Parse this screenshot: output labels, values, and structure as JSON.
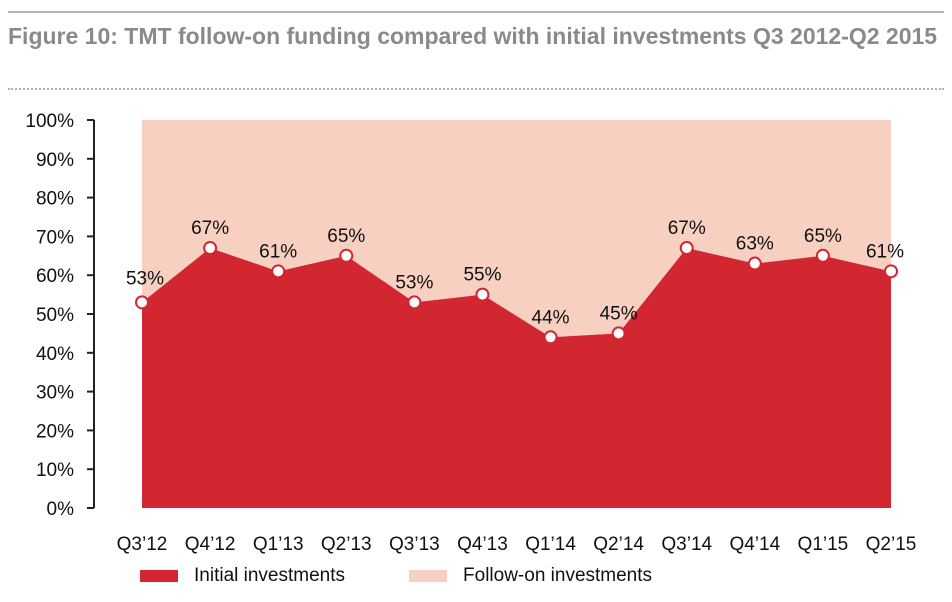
{
  "title": "Figure 10: TMT follow-on funding compared with initial investments Q3 2012-Q2 2015",
  "colors": {
    "initial": "#d22630",
    "followon": "#f7d0c2",
    "title": "#8a8a8a",
    "rule": "#b3b3b3"
  },
  "chart_data": {
    "type": "area",
    "title": "Figure 10: TMT follow-on funding compared with initial investments Q3 2012-Q2 2015",
    "categories": [
      "Q3’12",
      "Q4’12",
      "Q1’13",
      "Q2’13",
      "Q3’13",
      "Q4’13",
      "Q1’14",
      "Q2’14",
      "Q3’14",
      "Q4’14",
      "Q1’15",
      "Q2’15"
    ],
    "series": [
      {
        "name": "Initial investments",
        "values": [
          53,
          67,
          61,
          65,
          53,
          55,
          44,
          45,
          67,
          63,
          65,
          61
        ],
        "color": "#d22630"
      },
      {
        "name": "Follow-on investments",
        "values": [
          47,
          33,
          39,
          35,
          47,
          45,
          56,
          55,
          33,
          37,
          35,
          39
        ],
        "color": "#f7d0c2"
      }
    ],
    "data_labels": [
      "53%",
      "67%",
      "61%",
      "65%",
      "53%",
      "55%",
      "44%",
      "45%",
      "67%",
      "63%",
      "65%",
      "61%"
    ],
    "stacked": true,
    "xlabel": "",
    "ylabel": "",
    "ylim": [
      0,
      100
    ],
    "yticks": [
      "0%",
      "10%",
      "20%",
      "30%",
      "40%",
      "50%",
      "60%",
      "70%",
      "80%",
      "90%",
      "100%"
    ],
    "grid": false,
    "legend_position": "bottom"
  },
  "legend": [
    {
      "label": "Initial investments",
      "color": "#d22630"
    },
    {
      "label": "Follow-on investments",
      "color": "#f7d0c2"
    }
  ]
}
